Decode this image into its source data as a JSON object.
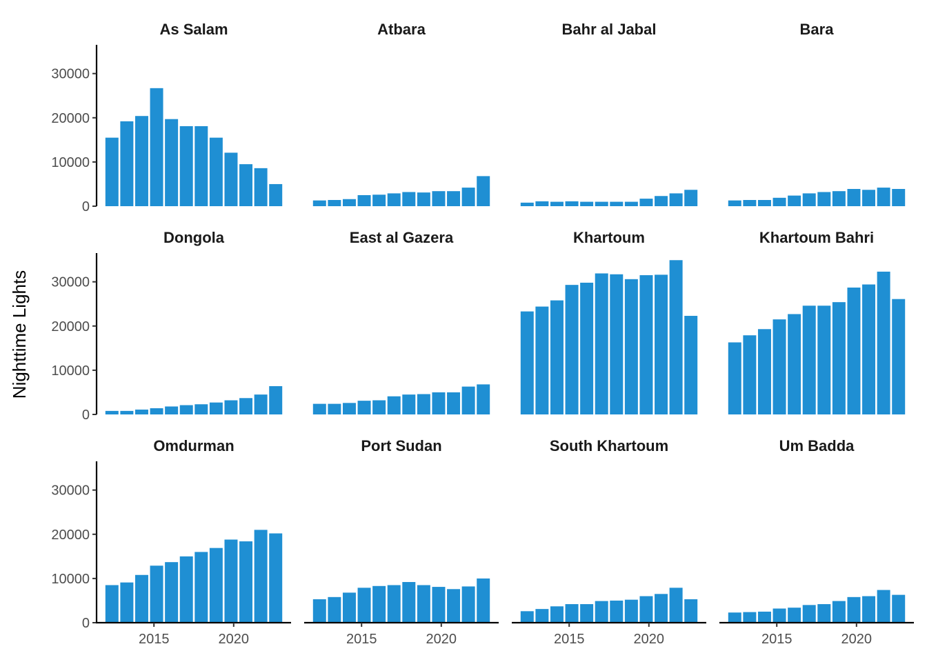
{
  "chart_data": {
    "type": "bar",
    "ylabel": "Nighttime Lights",
    "xlabel": "",
    "ylim": [
      0,
      36500
    ],
    "xlim": [
      2011.4,
      2023.6
    ],
    "yticks": [
      0,
      10000,
      20000,
      30000
    ],
    "xticks": [
      2015,
      2020
    ],
    "bar_color": "#1f8fd3",
    "x": [
      2012,
      2013,
      2014,
      2015,
      2016,
      2017,
      2018,
      2019,
      2020,
      2021,
      2022,
      2023
    ],
    "panels": [
      {
        "name": "As Salam",
        "values": [
          15500,
          19200,
          20400,
          26700,
          19700,
          18100,
          18100,
          15500,
          12100,
          9500,
          8600,
          5000
        ]
      },
      {
        "name": "Atbara",
        "values": [
          1300,
          1400,
          1600,
          2500,
          2600,
          2900,
          3200,
          3100,
          3400,
          3400,
          4200,
          6800
        ]
      },
      {
        "name": "Bahr al Jabal",
        "values": [
          800,
          1100,
          1000,
          1100,
          1000,
          1000,
          1000,
          1000,
          1700,
          2300,
          2900,
          3700
        ]
      },
      {
        "name": "Bara",
        "values": [
          1300,
          1400,
          1400,
          1900,
          2400,
          2900,
          3200,
          3400,
          3900,
          3700,
          4200,
          3900
        ]
      },
      {
        "name": "Dongola",
        "values": [
          800,
          800,
          1100,
          1400,
          1800,
          2100,
          2300,
          2700,
          3200,
          3700,
          4500,
          6400
        ]
      },
      {
        "name": "East al Gazera",
        "values": [
          2400,
          2400,
          2600,
          3100,
          3200,
          4100,
          4500,
          4600,
          5000,
          5000,
          6300,
          6800
        ]
      },
      {
        "name": "Khartoum",
        "values": [
          23300,
          24400,
          25800,
          29300,
          29800,
          31900,
          31700,
          30600,
          31500,
          31600,
          34900,
          22300
        ]
      },
      {
        "name": "Khartoum Bahri",
        "values": [
          16300,
          17900,
          19300,
          21500,
          22700,
          24600,
          24600,
          25400,
          28700,
          29400,
          32300,
          26100
        ]
      },
      {
        "name": "Omdurman",
        "values": [
          8500,
          9100,
          10800,
          12900,
          13700,
          15000,
          16000,
          16900,
          18800,
          18400,
          21000,
          20200
        ]
      },
      {
        "name": "Port Sudan",
        "values": [
          5300,
          5800,
          6800,
          7900,
          8300,
          8500,
          9200,
          8500,
          8100,
          7600,
          8200,
          10000
        ]
      },
      {
        "name": "South Khartoum",
        "values": [
          2600,
          3100,
          3700,
          4200,
          4200,
          4900,
          5000,
          5200,
          6000,
          6500,
          7900,
          5300
        ]
      },
      {
        "name": "Um Badda",
        "values": [
          2300,
          2400,
          2500,
          3200,
          3400,
          4000,
          4200,
          4900,
          5800,
          6000,
          7400,
          6300
        ]
      }
    ]
  }
}
